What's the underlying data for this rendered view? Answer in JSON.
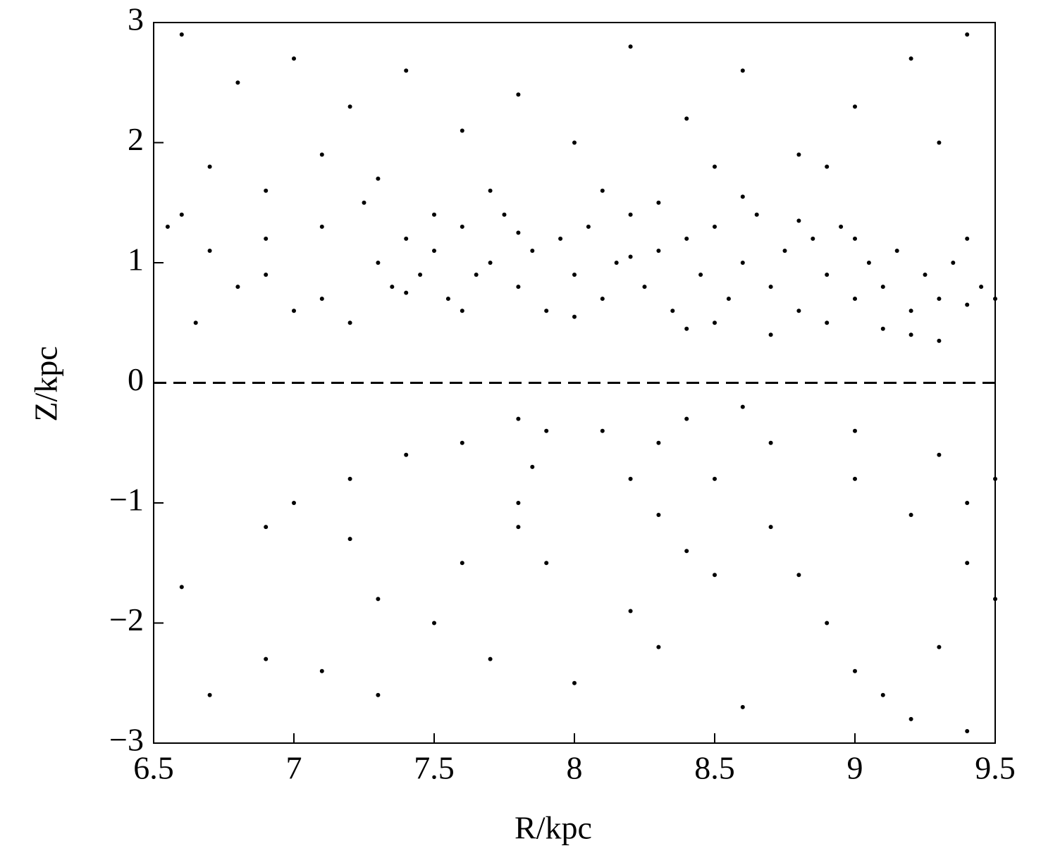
{
  "chart_data": {
    "type": "scatter",
    "x_label": "R/kpc",
    "y_label": "Z/kpc",
    "xlim": [
      6.5,
      9.5
    ],
    "ylim": [
      -3,
      3
    ],
    "xticks": [
      6.5,
      7,
      7.5,
      8,
      8.5,
      9,
      9.5
    ],
    "yticks": [
      {
        "value": -3,
        "label": "−3"
      },
      {
        "value": -2,
        "label": "−2"
      },
      {
        "value": -1,
        "label": "−1"
      },
      0,
      1,
      2,
      3
    ],
    "reference_line": 0,
    "color": "#000000",
    "x": [
      7.3,
      7.35,
      7.4,
      7.45,
      7.5,
      7.55,
      7.6,
      7.65,
      7.7,
      7.75,
      7.8,
      7.85,
      7.9,
      7.95,
      8.0,
      8.05,
      8.1,
      8.15,
      8.2,
      8.25,
      8.3,
      8.35,
      8.4,
      8.45,
      8.5,
      8.55,
      8.6,
      8.65,
      8.7,
      8.75,
      8.8,
      8.85,
      8.9,
      8.95,
      9.0,
      9.05,
      9.1,
      9.15,
      9.2,
      9.25,
      9.3,
      9.35,
      9.4,
      9.45,
      9.5,
      7.4,
      7.6,
      7.8,
      8.0,
      8.2,
      8.4,
      8.6,
      8.8,
      9.0,
      9.2,
      9.4,
      7.5,
      7.7,
      8.1,
      8.3,
      8.5,
      8.7,
      8.9,
      9.1,
      9.3,
      6.6,
      6.8,
      7.0,
      7.2,
      7.4,
      7.6,
      7.8,
      8.0,
      8.2,
      8.4,
      8.6,
      8.8,
      9.0,
      9.2,
      9.4,
      6.7,
      6.9,
      7.1,
      7.3,
      8.5,
      8.9,
      9.3,
      6.55,
      6.7,
      6.9,
      7.1,
      6.6,
      6.8,
      7.0,
      7.2,
      6.65,
      6.9,
      7.1,
      7.25,
      7.8,
      7.6,
      7.4,
      7.2,
      7.0,
      6.9,
      7.9,
      7.85,
      7.8,
      7.8,
      7.9,
      8.1,
      8.2,
      8.3,
      8.4,
      8.5,
      8.3,
      8.5,
      8.7,
      8.8,
      8.9,
      9.0,
      9.1,
      8.4,
      8.7,
      9.0,
      9.2,
      9.4,
      8.6,
      9.0,
      9.3,
      9.5,
      9.4,
      9.5,
      6.7,
      6.9,
      7.1,
      7.3,
      7.5,
      7.7,
      8.0,
      8.3,
      8.6,
      9.2,
      9.4,
      6.6,
      7.3,
      7.6,
      8.2,
      7.2,
      9.3
    ],
    "values": [
      1.0,
      0.8,
      1.2,
      0.9,
      1.1,
      0.7,
      1.3,
      0.9,
      1.0,
      1.4,
      0.8,
      1.1,
      0.6,
      1.2,
      0.9,
      1.3,
      0.7,
      1.0,
      1.4,
      0.8,
      1.1,
      0.6,
      1.2,
      0.9,
      1.3,
      0.7,
      1.0,
      1.4,
      0.8,
      1.1,
      0.6,
      1.2,
      0.9,
      1.3,
      0.7,
      1.0,
      0.8,
      1.1,
      0.6,
      0.9,
      0.7,
      1.0,
      0.65,
      0.8,
      0.7,
      0.75,
      0.6,
      1.25,
      0.55,
      1.05,
      0.45,
      1.55,
      1.35,
      1.2,
      0.4,
      1.2,
      1.4,
      1.6,
      1.6,
      1.5,
      0.5,
      0.4,
      0.5,
      0.45,
      0.35,
      2.9,
      2.5,
      2.7,
      2.3,
      2.6,
      2.1,
      2.4,
      2.0,
      2.8,
      2.2,
      2.6,
      1.9,
      2.3,
      2.7,
      2.9,
      1.8,
      1.6,
      1.9,
      1.7,
      1.8,
      1.8,
      2.0,
      1.3,
      1.1,
      0.9,
      0.7,
      1.4,
      0.8,
      0.6,
      0.5,
      0.5,
      1.2,
      1.3,
      1.5,
      -0.3,
      -0.5,
      -0.6,
      -0.8,
      -1.0,
      -1.2,
      -0.4,
      -0.7,
      -1.0,
      -1.2,
      -1.5,
      -0.4,
      -0.8,
      -1.1,
      -1.4,
      -1.6,
      -0.5,
      -0.8,
      -1.2,
      -1.6,
      -2.0,
      -2.4,
      -2.6,
      -0.3,
      -0.5,
      -0.8,
      -1.1,
      -1.5,
      -0.2,
      -0.4,
      -0.6,
      -0.8,
      -1.0,
      -1.8,
      -2.6,
      -2.3,
      -2.4,
      -2.6,
      -2.0,
      -2.3,
      -2.5,
      -2.2,
      -2.7,
      -2.8,
      -2.9,
      -1.7,
      -1.8,
      -1.5,
      -1.9,
      -1.3,
      -2.2
    ]
  }
}
